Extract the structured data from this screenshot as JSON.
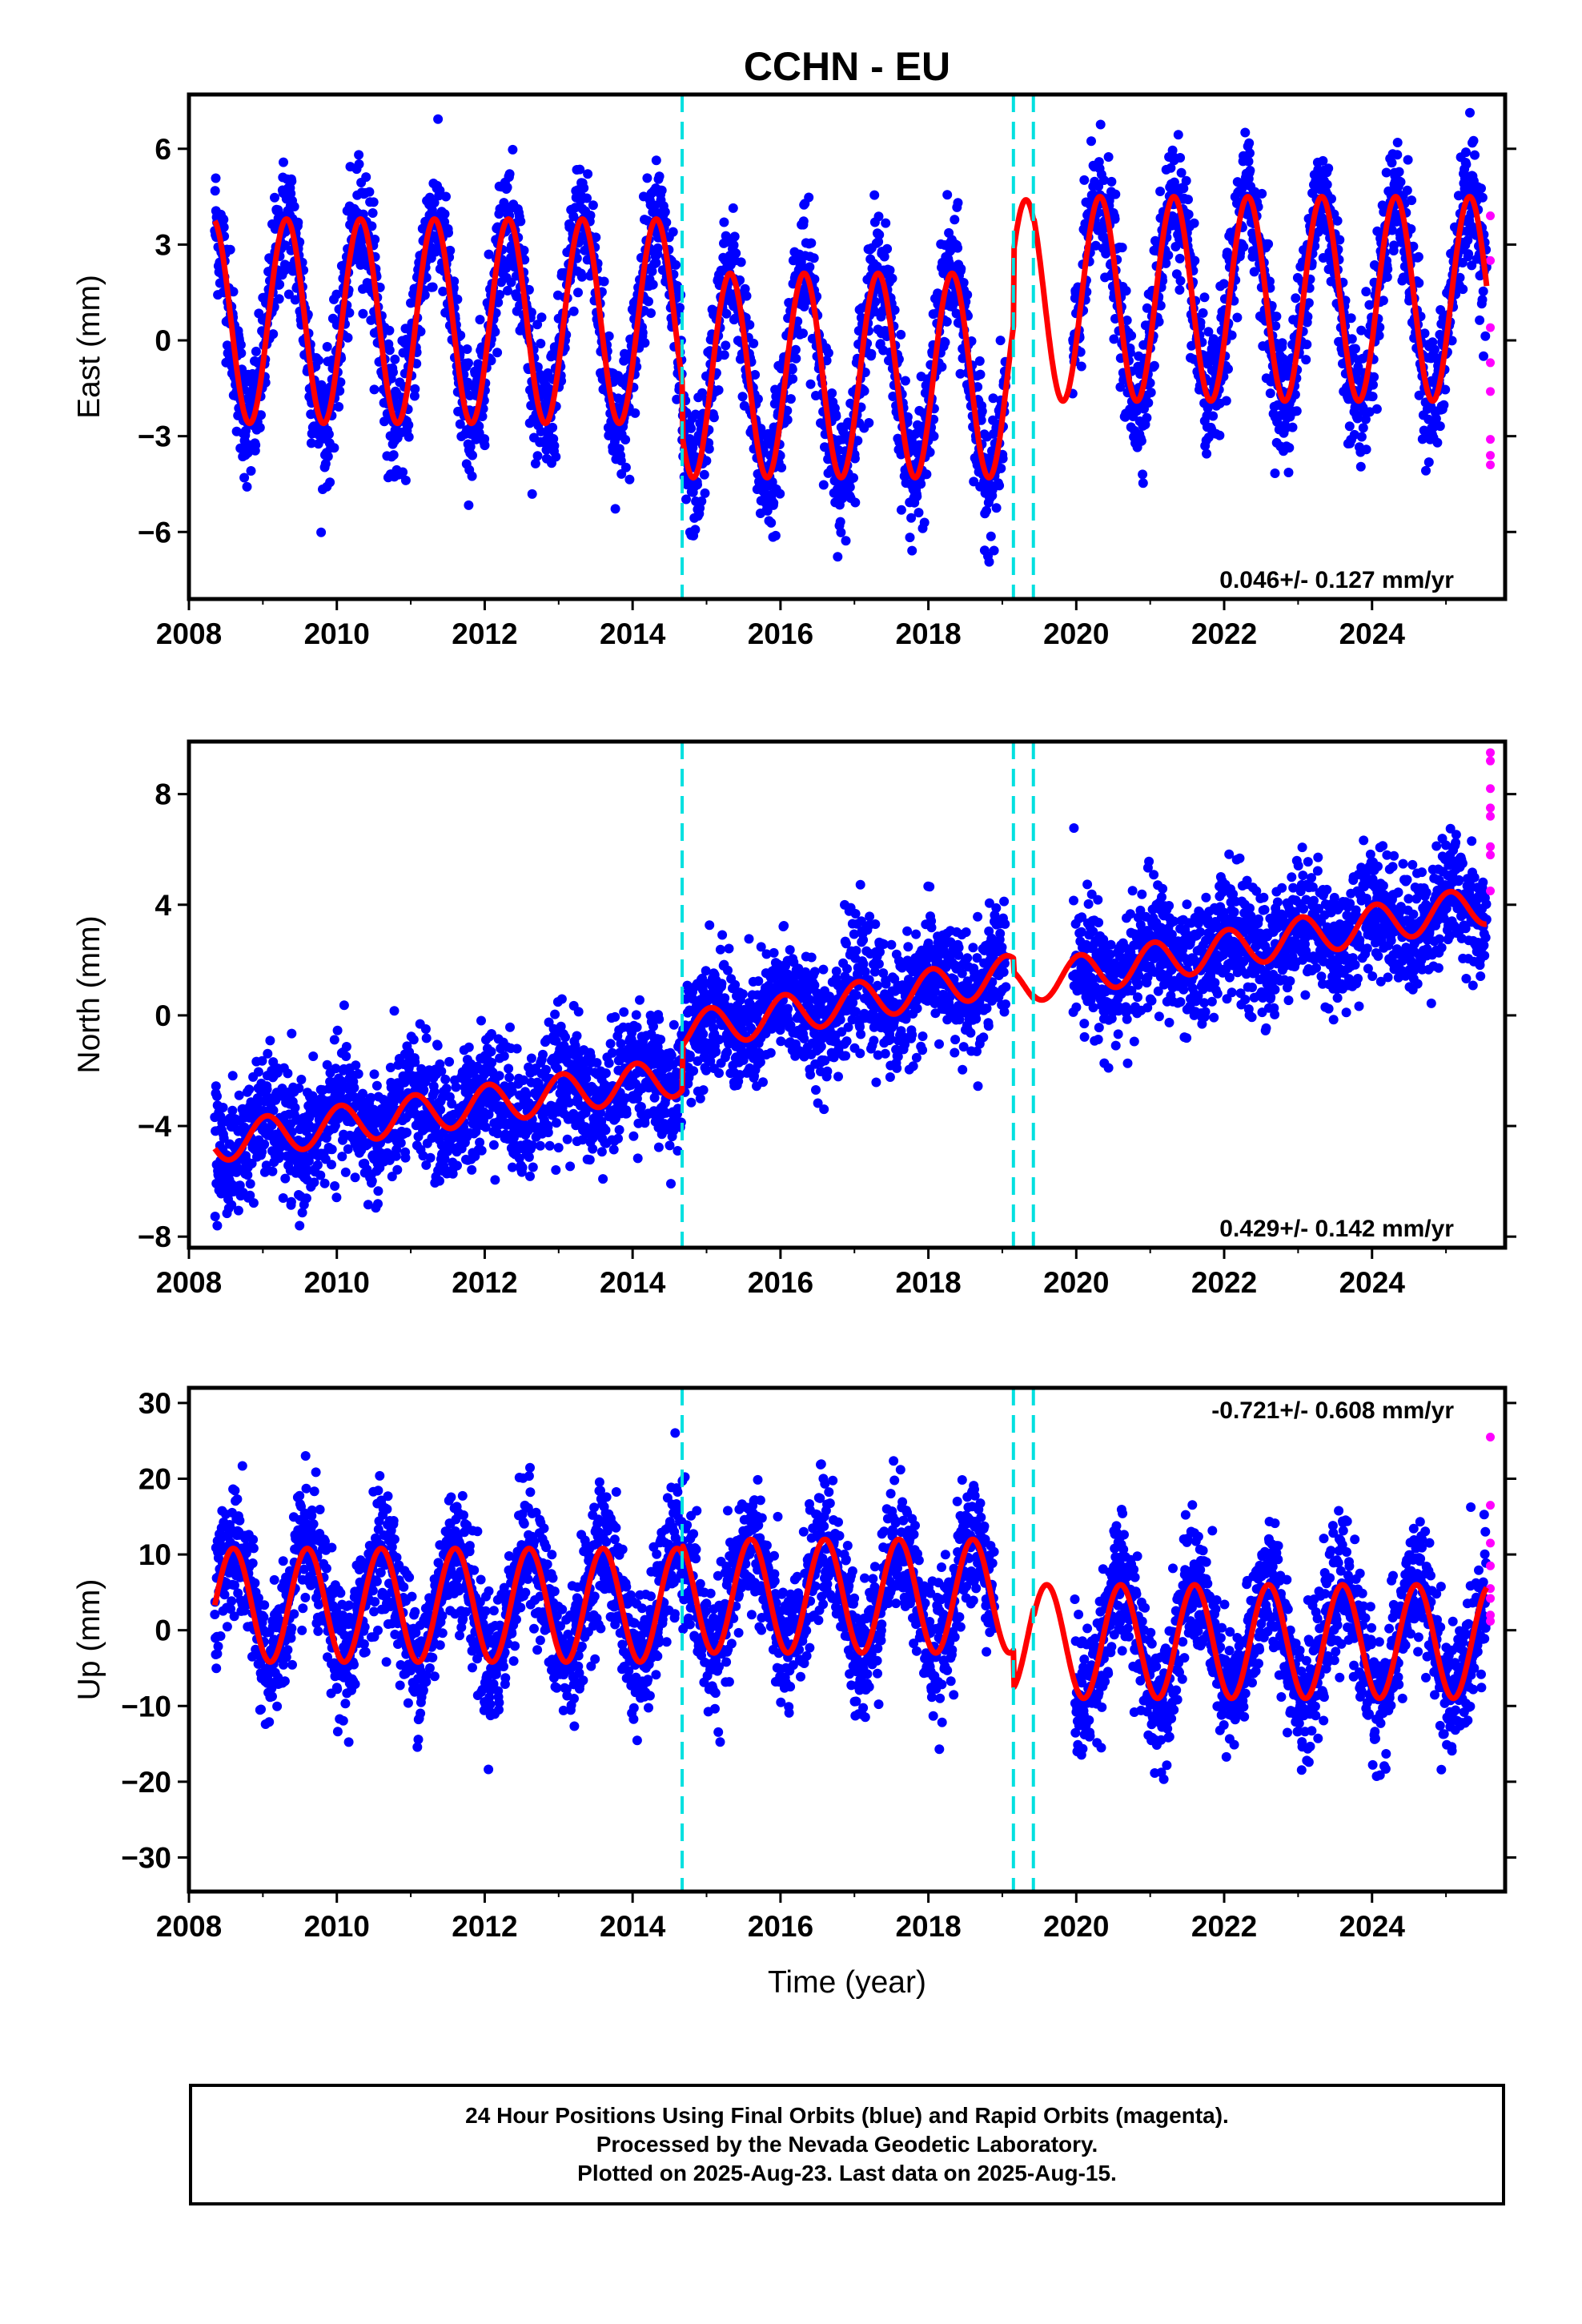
{
  "figure": {
    "title": "CCHN - EU",
    "xlabel": "Time (year)"
  },
  "caption": {
    "line1": "24 Hour Positions Using Final Orbits (blue) and Rapid Orbits (magenta).",
    "line2": "Processed by the Nevada Geodetic Laboratory.",
    "line3": "Plotted on 2025-Aug-23. Last data on 2025-Aug-15."
  },
  "colors": {
    "final_orbits": "#0000ff",
    "rapid_orbits": "#ff00ff",
    "model_fit": "#ff0000",
    "offset_lines": "#00e0e0"
  },
  "chart_data": [
    {
      "type": "scatter",
      "name": "east",
      "ylabel": "East (mm)",
      "xlim": [
        2008,
        2025.8
      ],
      "ylim": [
        -8.1,
        7.7
      ],
      "xticks": [
        2008,
        2010,
        2012,
        2014,
        2016,
        2018,
        2020,
        2022,
        2024
      ],
      "yticks": [
        -6,
        -3,
        0,
        3,
        6
      ],
      "ytick_labels": [
        "−6",
        "−3",
        "0",
        "3",
        "6"
      ],
      "rate_label": "0.046+/- 0.127 mm/yr",
      "rate_position": "bottom-right",
      "offsets": [
        2014.67,
        2019.15,
        2019.42
      ],
      "data_span": [
        2008.35,
        2025.55
      ],
      "data_gap": [
        2019.05,
        2019.95
      ],
      "model_segments": [
        {
          "x0": 2008.35,
          "x1": 2014.67,
          "offset": 0.6,
          "amplitude": 3.2,
          "peak_year_fraction": 0.32
        },
        {
          "x0": 2014.67,
          "x1": 2019.15,
          "offset": -1.1,
          "amplitude": 3.2,
          "peak_year_fraction": 0.32
        },
        {
          "x0": 2019.15,
          "x1": 2019.42,
          "offset": 1.2,
          "amplitude": 3.2,
          "peak_year_fraction": 0.32
        },
        {
          "x0": 2019.42,
          "x1": 2025.55,
          "offset": 1.3,
          "amplitude": 3.2,
          "peak_year_fraction": 0.32
        }
      ],
      "scatter_spread": 1.0,
      "rapid_points": [
        {
          "x": 2025.6,
          "y": 3.9
        },
        {
          "x": 2025.6,
          "y": 2.5
        },
        {
          "x": 2025.6,
          "y": 0.4
        },
        {
          "x": 2025.6,
          "y": -0.7
        },
        {
          "x": 2025.6,
          "y": -1.6
        },
        {
          "x": 2025.6,
          "y": -3.1
        },
        {
          "x": 2025.6,
          "y": -3.6
        },
        {
          "x": 2025.6,
          "y": -3.9
        }
      ]
    },
    {
      "type": "scatter",
      "name": "north",
      "ylabel": "North (mm)",
      "xlim": [
        2008,
        2025.8
      ],
      "ylim": [
        -8.4,
        9.9
      ],
      "xticks": [
        2008,
        2010,
        2012,
        2014,
        2016,
        2018,
        2020,
        2022,
        2024
      ],
      "yticks": [
        -8,
        -4,
        0,
        4,
        8
      ],
      "ytick_labels": [
        "−8",
        "−4",
        "0",
        "4",
        "8"
      ],
      "rate_label": "0.429+/- 0.142 mm/yr",
      "rate_position": "bottom-right",
      "offsets": [
        2014.67,
        2019.15,
        2019.42
      ],
      "data_span": [
        2008.35,
        2025.55
      ],
      "data_gap": [
        2019.05,
        2019.95
      ],
      "model_segments": [
        {
          "x0": 2008.35,
          "x1": 2014.67,
          "y_start": -4.6,
          "y_end": -2.2,
          "amplitude": 0.7,
          "peak_year_fraction": 0.05
        },
        {
          "x0": 2014.67,
          "x1": 2019.15,
          "y_start": -0.6,
          "y_end": 1.5,
          "amplitude": 0.7,
          "peak_year_fraction": 0.05
        },
        {
          "x0": 2019.15,
          "x1": 2019.42,
          "y_start": 1.0,
          "y_end": 1.1,
          "amplitude": 0.7,
          "peak_year_fraction": 0.05
        },
        {
          "x0": 2019.42,
          "x1": 2025.55,
          "y_start": 1.2,
          "y_end": 4.0,
          "amplitude": 0.7,
          "peak_year_fraction": 0.05
        }
      ],
      "scatter_spread": 1.1,
      "rapid_points": [
        {
          "x": 2025.6,
          "y": 9.5
        },
        {
          "x": 2025.6,
          "y": 9.2
        },
        {
          "x": 2025.6,
          "y": 8.2
        },
        {
          "x": 2025.6,
          "y": 7.5
        },
        {
          "x": 2025.6,
          "y": 7.2
        },
        {
          "x": 2025.6,
          "y": 6.1
        },
        {
          "x": 2025.6,
          "y": 5.8
        },
        {
          "x": 2025.6,
          "y": 4.5
        }
      ]
    },
    {
      "type": "scatter",
      "name": "up",
      "ylabel": "Up (mm)",
      "xlim": [
        2008,
        2025.8
      ],
      "ylim": [
        -34.5,
        32
      ],
      "xticks": [
        2008,
        2010,
        2012,
        2014,
        2016,
        2018,
        2020,
        2022,
        2024
      ],
      "yticks": [
        -30,
        -20,
        -10,
        0,
        10,
        20,
        30
      ],
      "ytick_labels": [
        "−30",
        "−20",
        "−10",
        "0",
        "10",
        "20",
        "30"
      ],
      "rate_label": "-0.721+/- 0.608 mm/yr",
      "rate_position": "top-right",
      "offsets": [
        2014.67,
        2019.15,
        2019.42
      ],
      "data_span": [
        2008.35,
        2025.55
      ],
      "data_gap": [
        2018.9,
        2019.98
      ],
      "model_segments": [
        {
          "x0": 2008.35,
          "x1": 2014.67,
          "offset": 3.3,
          "amplitude": 7.5,
          "peak_year_fraction": 0.6
        },
        {
          "x0": 2014.67,
          "x1": 2019.15,
          "offset": 4.5,
          "amplitude": 7.5,
          "peak_year_fraction": 0.6
        },
        {
          "x0": 2019.15,
          "x1": 2019.42,
          "offset": -0.5,
          "amplitude": 7.5,
          "peak_year_fraction": 0.6
        },
        {
          "x0": 2019.42,
          "x1": 2025.55,
          "offset": -1.5,
          "amplitude": 7.5,
          "peak_year_fraction": 0.6
        }
      ],
      "scatter_spread": 4.3,
      "rapid_points": [
        {
          "x": 2025.6,
          "y": 25.5
        },
        {
          "x": 2025.6,
          "y": 16.5
        },
        {
          "x": 2025.6,
          "y": 11.5
        },
        {
          "x": 2025.6,
          "y": 8.5
        },
        {
          "x": 2025.6,
          "y": 5.5
        },
        {
          "x": 2025.6,
          "y": 4.2
        },
        {
          "x": 2025.6,
          "y": 2.0
        },
        {
          "x": 2025.6,
          "y": 1.2
        }
      ]
    }
  ]
}
